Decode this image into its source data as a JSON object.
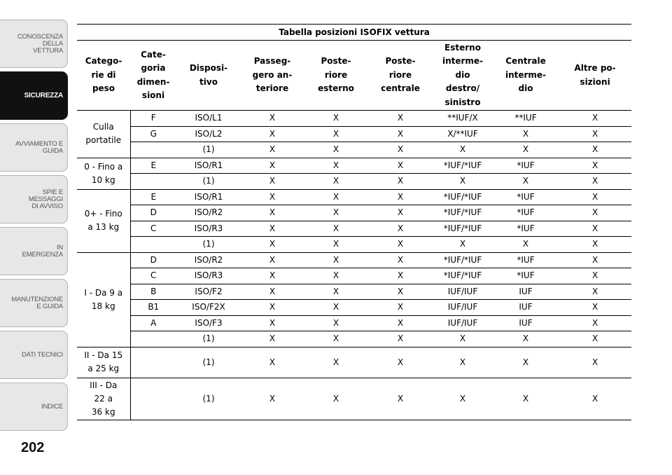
{
  "sidebar": {
    "tabs": [
      {
        "label": "CONOSCENZA DELLA\nVETTURA",
        "active": false
      },
      {
        "label": "SICUREZZA",
        "active": true
      },
      {
        "label": "AVVIAMENTO E\nGUIDA",
        "active": false
      },
      {
        "label": "SPIE E\nMESSAGGI\nDI AVVISO",
        "active": false
      },
      {
        "label": "IN\nEMERGENZA",
        "active": false
      },
      {
        "label": "MANUTENZIONE\nE GUIDA",
        "active": false
      },
      {
        "label": "DATI TECNICI",
        "active": false
      },
      {
        "label": "INDICE",
        "active": false
      }
    ]
  },
  "page_number": "202",
  "table": {
    "title": "Tabella posizioni ISOFIX vettura",
    "headers": [
      "Catego-\nrie di\npeso",
      "Cate-\ngoria\ndimen-\nsioni",
      "Disposi-\ntivo",
      "Passeg-\ngero an-\nteriore",
      "Poste-\nriore\nesterno",
      "Poste-\nriore\ncentrale",
      "Esterno\ninterme-\ndio\ndestro/\nsinistro",
      "Centrale\ninterme-\ndio",
      "Altre po-\nsizioni"
    ],
    "groups": [
      {
        "label": "Culla\nportatile",
        "rows": [
          [
            "F",
            "ISO/L1",
            "X",
            "X",
            "X",
            "**IUF/X",
            "**IUF",
            "X"
          ],
          [
            "G",
            "ISO/L2",
            "X",
            "X",
            "X",
            "X/**IUF",
            "X",
            "X"
          ],
          [
            "",
            "(1)",
            "X",
            "X",
            "X",
            "X",
            "X",
            "X"
          ]
        ]
      },
      {
        "label": "0 - Fino a\n10 kg",
        "rows": [
          [
            "E",
            "ISO/R1",
            "X",
            "X",
            "X",
            "*IUF/*IUF",
            "*IUF",
            "X"
          ],
          [
            "",
            "(1)",
            "X",
            "X",
            "X",
            "X",
            "X",
            "X"
          ]
        ]
      },
      {
        "label": "0+ - Fino\na 13 kg",
        "rows": [
          [
            "E",
            "ISO/R1",
            "X",
            "X",
            "X",
            "*IUF/*IUF",
            "*IUF",
            "X"
          ],
          [
            "D",
            "ISO/R2",
            "X",
            "X",
            "X",
            "*IUF/*IUF",
            "*IUF",
            "X"
          ],
          [
            "C",
            "ISO/R3",
            "X",
            "X",
            "X",
            "*IUF/*IUF",
            "*IUF",
            "X"
          ],
          [
            "",
            "(1)",
            "X",
            "X",
            "X",
            "X",
            "X",
            "X"
          ]
        ]
      },
      {
        "label": "I - Da 9 a\n18 kg",
        "rows": [
          [
            "D",
            "ISO/R2",
            "X",
            "X",
            "X",
            "*IUF/*IUF",
            "*IUF",
            "X"
          ],
          [
            "C",
            "ISO/R3",
            "X",
            "X",
            "X",
            "*IUF/*IUF",
            "*IUF",
            "X"
          ],
          [
            "B",
            "ISO/F2",
            "X",
            "X",
            "X",
            "IUF/IUF",
            "IUF",
            "X"
          ],
          [
            "B1",
            "ISO/F2X",
            "X",
            "X",
            "X",
            "IUF/IUF",
            "IUF",
            "X"
          ],
          [
            "A",
            "ISO/F3",
            "X",
            "X",
            "X",
            "IUF/IUF",
            "IUF",
            "X"
          ],
          [
            "",
            "(1)",
            "X",
            "X",
            "X",
            "X",
            "X",
            "X"
          ]
        ]
      },
      {
        "label": "II - Da 15\na 25 kg",
        "rows": [
          [
            "",
            "(1)",
            "X",
            "X",
            "X",
            "X",
            "X",
            "X"
          ]
        ]
      },
      {
        "label": "III - Da\n22 a\n36 kg",
        "rows": [
          [
            "",
            "(1)",
            "X",
            "X",
            "X",
            "X",
            "X",
            "X"
          ]
        ]
      }
    ]
  }
}
